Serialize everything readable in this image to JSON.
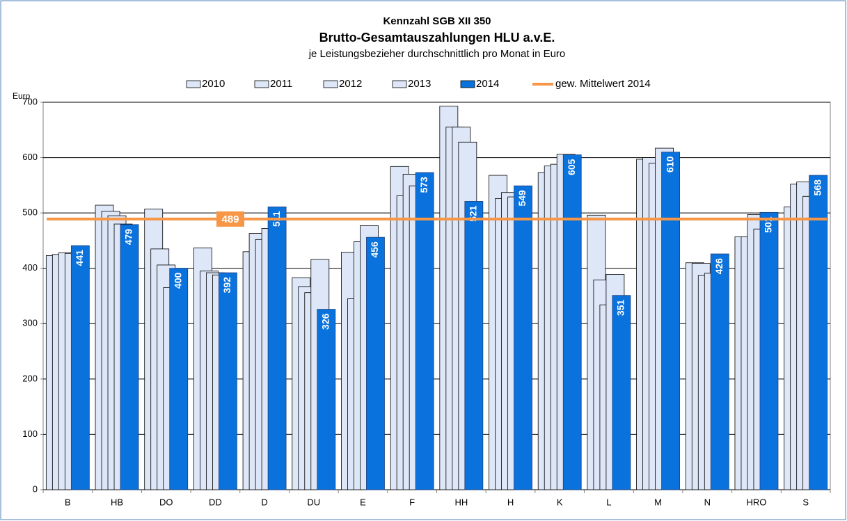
{
  "chart_data": {
    "type": "bar",
    "title": "Kennzahl SGB XII 350",
    "subtitle": "Brutto-Gesamtauszahlungen HLU a.v.E.",
    "subtitle2": "je Leistungsbezieher durchschnittlich pro Monat  in Euro",
    "y_label": "Euro",
    "categories": [
      "B",
      "HB",
      "DO",
      "DD",
      "D",
      "DU",
      "E",
      "F",
      "HH",
      "H",
      "K",
      "L",
      "M",
      "N",
      "HRO",
      "S"
    ],
    "series": [
      {
        "name": "2010",
        "color": "#dde7f7",
        "values": [
          423,
          514,
          507,
          437,
          430,
          383,
          429,
          584,
          693,
          568,
          573,
          496,
          597,
          410,
          457,
          511
        ]
      },
      {
        "name": "2011",
        "color": "#dde7f7",
        "values": [
          425,
          503,
          435,
          395,
          463,
          367,
          345,
          531,
          655,
          526,
          585,
          379,
          600,
          409,
          457,
          552
        ]
      },
      {
        "name": "2012",
        "color": "#dde7f7",
        "values": [
          428,
          495,
          406,
          392,
          452,
          356,
          448,
          570,
          655,
          537,
          588,
          334,
          590,
          387,
          497,
          556
        ]
      },
      {
        "name": "2013",
        "color": "#dde7f7",
        "values": [
          427,
          480,
          365,
          388,
          472,
          416,
          477,
          549,
          628,
          529,
          606,
          389,
          617,
          391,
          471,
          530
        ]
      },
      {
        "name": "2014",
        "color": "#0a72dc",
        "values": [
          441,
          479,
          400,
          392,
          511,
          326,
          456,
          573,
          521,
          549,
          605,
          351,
          610,
          426,
          501,
          568
        ]
      }
    ],
    "mean_line": {
      "name": "gew. Mittelwert 2014",
      "value": 489,
      "color": "#f79646"
    },
    "ylim": [
      0,
      700
    ],
    "yticks": [
      0,
      100,
      200,
      300,
      400,
      500,
      600,
      700
    ],
    "grid": true
  }
}
